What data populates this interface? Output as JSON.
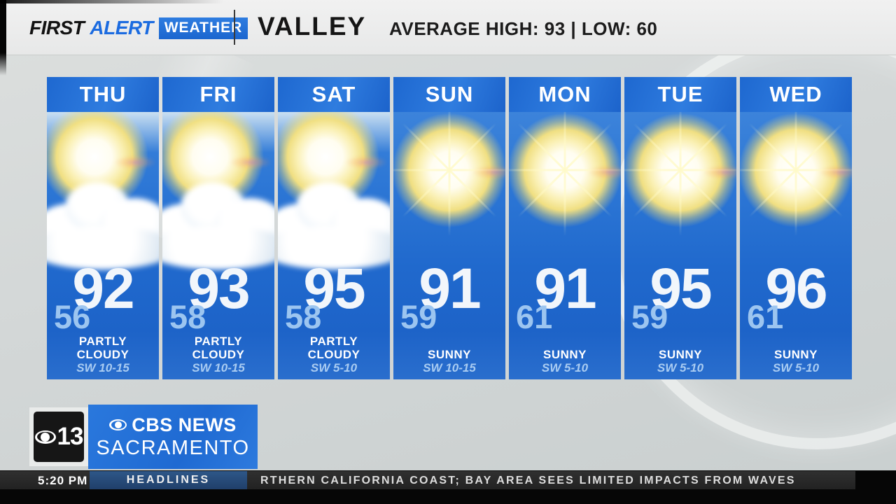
{
  "header": {
    "brand": {
      "word1": "FIRST",
      "word2": "ALERT",
      "word3": "WEATHER"
    },
    "region": "VALLEY",
    "stats": "AVERAGE HIGH: 93 | LOW: 60"
  },
  "forecast": {
    "days": [
      {
        "day": "THU",
        "high": "92",
        "low": "56",
        "condition": "PARTLY CLOUDY",
        "wind": "SW 10-15",
        "icon": "partly-cloudy"
      },
      {
        "day": "FRI",
        "high": "93",
        "low": "58",
        "condition": "PARTLY CLOUDY",
        "wind": "SW 10-15",
        "icon": "partly-cloudy"
      },
      {
        "day": "SAT",
        "high": "95",
        "low": "58",
        "condition": "PARTLY CLOUDY",
        "wind": "SW 5-10",
        "icon": "partly-cloudy"
      },
      {
        "day": "SUN",
        "high": "91",
        "low": "59",
        "condition": "SUNNY",
        "wind": "SW 10-15",
        "icon": "sunny"
      },
      {
        "day": "MON",
        "high": "91",
        "low": "61",
        "condition": "SUNNY",
        "wind": "SW 5-10",
        "icon": "sunny"
      },
      {
        "day": "TUE",
        "high": "95",
        "low": "59",
        "condition": "SUNNY",
        "wind": "SW 5-10",
        "icon": "sunny"
      },
      {
        "day": "WED",
        "high": "96",
        "low": "61",
        "condition": "SUNNY",
        "wind": "SW 5-10",
        "icon": "sunny"
      }
    ]
  },
  "station": {
    "channel_number": "13",
    "network": "CBS NEWS",
    "city": "SACRAMENTO"
  },
  "ticker": {
    "time": "5:20 PM",
    "label": "HEADLINES",
    "text": "RTHERN CALIFORNIA COAST; BAY AREA SEES LIMITED IMPACTS FROM WAVES"
  },
  "colors": {
    "brand_blue": "#1f6fd8",
    "panel_blue_top": "#3c83da",
    "panel_blue_bottom": "#1d63c8",
    "low_temp_blue": "#9cc5f0",
    "headlines_navy": "#2b5184",
    "ticker_bg": "#262626"
  }
}
